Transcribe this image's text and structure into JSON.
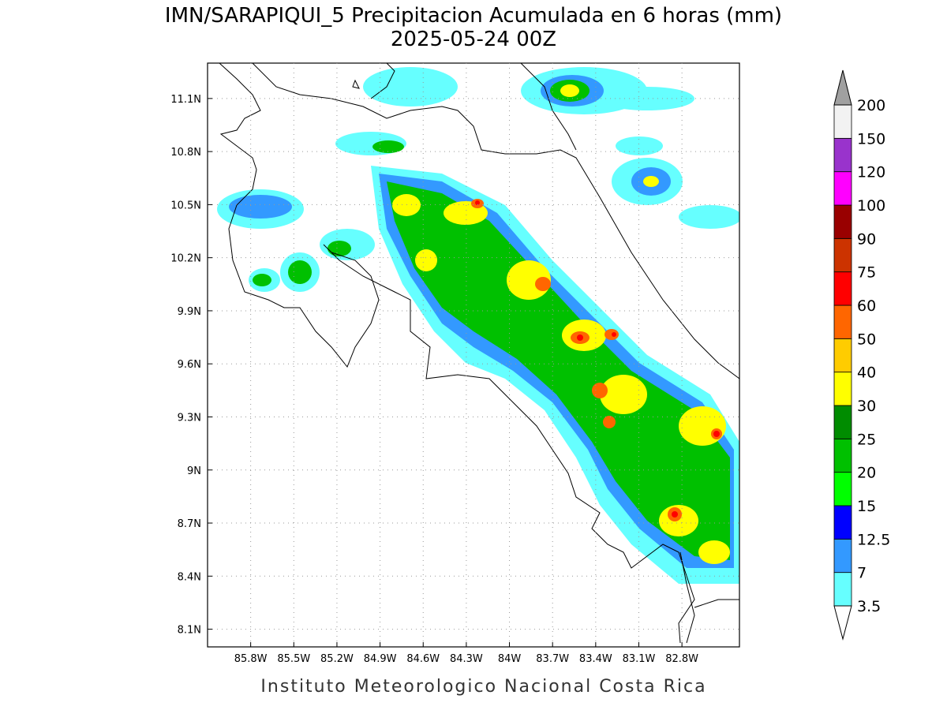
{
  "header": {
    "title": "IMN/SARAPIQUI_5 Precipitacion Acumulada en 6 horas (mm)",
    "subtitle": "2025-05-24 00Z"
  },
  "map": {
    "xlim": [
      -86.1,
      -82.4
    ],
    "ylim": [
      8.0,
      11.3
    ],
    "grid": true,
    "xticks": [
      {
        "value": -85.8,
        "label": "85.8W"
      },
      {
        "value": -85.5,
        "label": "85.5W"
      },
      {
        "value": -85.2,
        "label": "85.2W"
      },
      {
        "value": -84.9,
        "label": "84.9W"
      },
      {
        "value": -84.6,
        "label": "84.6W"
      },
      {
        "value": -84.3,
        "label": "84.3W"
      },
      {
        "value": -84.0,
        "label": "84W"
      },
      {
        "value": -83.7,
        "label": "83.7W"
      },
      {
        "value": -83.4,
        "label": "83.4W"
      },
      {
        "value": -83.1,
        "label": "83.1W"
      },
      {
        "value": -82.8,
        "label": "82.8W"
      }
    ],
    "yticks": [
      {
        "value": 8.1,
        "label": "8.1N"
      },
      {
        "value": 8.4,
        "label": "8.4N"
      },
      {
        "value": 8.7,
        "label": "8.7N"
      },
      {
        "value": 9.0,
        "label": "9N"
      },
      {
        "value": 9.3,
        "label": "9.3N"
      },
      {
        "value": 9.6,
        "label": "9.6N"
      },
      {
        "value": 9.9,
        "label": "9.9N"
      },
      {
        "value": 10.2,
        "label": "10.2N"
      },
      {
        "value": 10.5,
        "label": "10.5N"
      },
      {
        "value": 10.8,
        "label": "10.8N"
      },
      {
        "value": 11.1,
        "label": "11.1N"
      }
    ]
  },
  "colorbar": {
    "levels": [
      3.5,
      7,
      12.5,
      15,
      20,
      25,
      30,
      40,
      50,
      60,
      75,
      90,
      100,
      120,
      150,
      200
    ],
    "colors": [
      "#66ffff",
      "#3399ff",
      "#0000ff",
      "#00ff00",
      "#00c000",
      "#008c00",
      "#ffff00",
      "#ffcc00",
      "#ff6600",
      "#ff0000",
      "#cc3300",
      "#990000",
      "#ff00ff",
      "#9933cc",
      "#f2f2f2"
    ],
    "over_color": "#a0a0a0",
    "under_color": "#ffffff"
  },
  "footer": "Instituto Meteorologico Nacional Costa Rica"
}
